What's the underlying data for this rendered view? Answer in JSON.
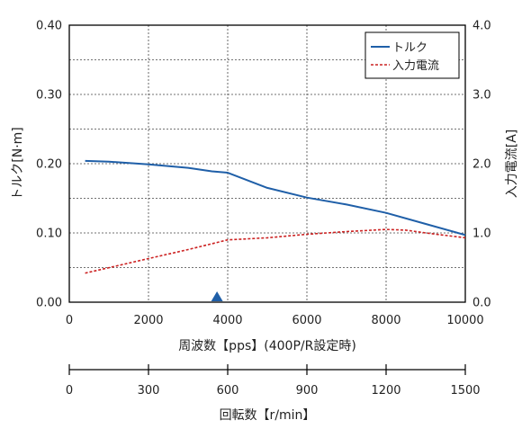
{
  "chart_data": {
    "type": "line",
    "title": "",
    "xlabel": "周波数【pps】(400P/R設定時)",
    "ylabel": "トルク[N·m]",
    "y2label": "入力電流[A]",
    "x2label": "回転数【r/min】",
    "xlim": [
      0,
      10000
    ],
    "ylim": [
      0,
      0.4
    ],
    "y2lim": [
      0,
      4.0
    ],
    "x2lim": [
      0,
      1500
    ],
    "xticks": [
      0,
      2000,
      4000,
      6000,
      8000,
      10000
    ],
    "xtick_labels": [
      "0",
      "2000",
      "4000",
      "6000",
      "8000",
      "10000"
    ],
    "yticks": [
      0,
      0.1,
      0.2,
      0.3,
      0.4
    ],
    "ytick_labels": [
      "0.00",
      "0.10",
      "0.20",
      "0.30",
      "0.40"
    ],
    "y2ticks": [
      0,
      1,
      2,
      3,
      4
    ],
    "y2tick_labels": [
      "0.0",
      "1.0",
      "2.0",
      "3.0",
      "4.0"
    ],
    "x2ticks": [
      0,
      300,
      600,
      900,
      1200,
      1500
    ],
    "x2tick_labels": [
      "0",
      "300",
      "600",
      "900",
      "1200",
      "1500"
    ],
    "grid": true,
    "legend_position": "top-right",
    "marker": {
      "x": 3730,
      "shape": "triangle",
      "color": "#1f5fa8"
    },
    "series": [
      {
        "name": "トルク",
        "axis": "left",
        "color": "#1f5fa8",
        "style": "solid",
        "x": [
          400,
          1000,
          2000,
          3000,
          3600,
          4000,
          5000,
          6000,
          7000,
          8000,
          9000,
          10000
        ],
        "y": [
          0.204,
          0.203,
          0.199,
          0.194,
          0.189,
          0.187,
          0.165,
          0.151,
          0.141,
          0.129,
          0.113,
          0.097
        ]
      },
      {
        "name": "入力電流",
        "axis": "right",
        "color": "#cc2222",
        "style": "dashed",
        "x": [
          400,
          2000,
          3000,
          4000,
          5000,
          6000,
          7000,
          8000,
          8500,
          9000,
          10000
        ],
        "y": [
          0.42,
          0.63,
          0.76,
          0.9,
          0.93,
          0.98,
          1.02,
          1.05,
          1.04,
          1.0,
          0.93
        ]
      }
    ]
  }
}
